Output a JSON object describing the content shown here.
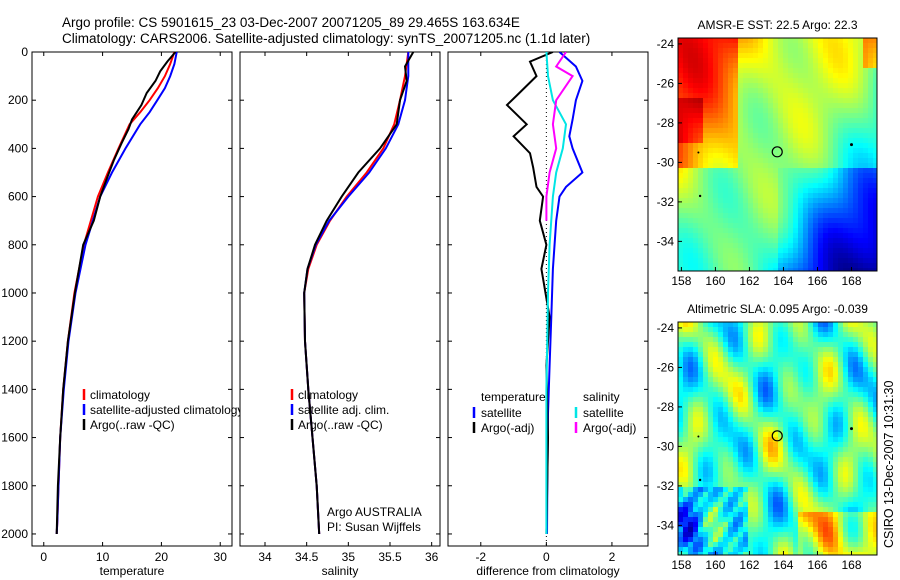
{
  "header": {
    "line1": "Argo profile: CS 5901615_23 03-Dec-2007 20071205_89 29.465S 163.634E",
    "line2": "Climatology: CARS2006. Satellite-adjusted climatology: synTS_20071205.nc (1.1d later)"
  },
  "side_label": "CSIRO 13-Dec-2007 10:31:30",
  "colors": {
    "climatology": "#ff0000",
    "satellite": "#0000ff",
    "argo": "#000000",
    "sat_diff_sal": "#00e5e5",
    "argo_diff_sal": "#ff00ff"
  },
  "chart_data": [
    {
      "type": "line",
      "id": "temperature",
      "xlabel": "temperature",
      "xlim": [
        -2,
        32
      ],
      "ylim": [
        2050,
        0
      ],
      "xticks": [
        0,
        10,
        20,
        30
      ],
      "yticks": [
        0,
        200,
        400,
        600,
        800,
        1000,
        1200,
        1400,
        1600,
        1800,
        2000
      ],
      "legend": [
        "climatology",
        "satellite-adjusted climatology",
        "Argo(..raw -QC)"
      ],
      "series": [
        {
          "name": "climatology",
          "color": "#ff0000",
          "x": [
            22.2,
            21.5,
            20.6,
            19.4,
            18.0,
            16.4,
            14.6,
            12.7,
            10.9,
            9.2,
            6.8,
            5.2,
            4.1,
            3.3,
            2.8,
            2.5,
            2.3,
            2.2
          ],
          "y": [
            0,
            50,
            100,
            150,
            200,
            250,
            300,
            400,
            500,
            600,
            800,
            1000,
            1200,
            1400,
            1600,
            1800,
            1950,
            2000
          ]
        },
        {
          "name": "satellite-adjusted climatology",
          "color": "#0000ff",
          "x": [
            22.6,
            22.2,
            21.5,
            20.6,
            19.3,
            18.0,
            16.4,
            13.9,
            11.6,
            9.6,
            7.1,
            5.4,
            4.2,
            3.4,
            2.8,
            2.5,
            2.3,
            2.2
          ],
          "y": [
            0,
            50,
            100,
            150,
            200,
            250,
            300,
            400,
            500,
            600,
            800,
            1000,
            1200,
            1400,
            1600,
            1800,
            1950,
            2000
          ]
        },
        {
          "name": "Argo(..raw -QC)",
          "color": "#000000",
          "x": [
            22.4,
            21.0,
            19.8,
            19.0,
            17.5,
            16.6,
            15.0,
            14.4,
            13.2,
            11.9,
            10.8,
            9.6,
            8.5,
            6.7,
            5.3,
            4.1,
            3.3,
            2.8,
            2.4,
            2.2
          ],
          "y": [
            0,
            40,
            80,
            120,
            170,
            220,
            280,
            320,
            380,
            450,
            520,
            600,
            700,
            800,
            1000,
            1200,
            1400,
            1600,
            1800,
            2000
          ]
        }
      ]
    },
    {
      "type": "line",
      "id": "salinity",
      "xlabel": "salinity",
      "xlim": [
        33.7,
        36.1
      ],
      "ylim": [
        2050,
        0
      ],
      "xticks": [
        34,
        34.5,
        35,
        35.5,
        36
      ],
      "yticks": [
        0,
        200,
        400,
        600,
        800,
        1000,
        1200,
        1400,
        1600,
        1800,
        2000
      ],
      "legend": [
        "climatology",
        "satellite adj. clim.",
        "Argo(..raw -QC)"
      ],
      "annotation": [
        "Argo AUSTRALIA",
        "PI: Susan Wijffels"
      ],
      "series": [
        {
          "name": "climatology",
          "color": "#ff0000",
          "x": [
            35.72,
            35.68,
            35.62,
            35.55,
            35.42,
            35.22,
            34.98,
            34.78,
            34.62,
            34.52,
            34.47,
            34.48,
            34.52,
            34.57,
            34.62,
            34.65
          ],
          "y": [
            0,
            100,
            200,
            300,
            400,
            500,
            600,
            700,
            800,
            900,
            1000,
            1200,
            1400,
            1600,
            1800,
            2000
          ]
        },
        {
          "name": "satellite adj. clim.",
          "color": "#0000ff",
          "x": [
            35.72,
            35.72,
            35.68,
            35.6,
            35.45,
            35.25,
            35.0,
            34.77,
            34.61,
            34.51,
            34.47,
            34.48,
            34.52,
            34.57,
            34.62,
            34.65
          ],
          "y": [
            0,
            100,
            200,
            300,
            400,
            500,
            600,
            700,
            800,
            900,
            1000,
            1200,
            1400,
            1600,
            1800,
            2000
          ]
        },
        {
          "name": "Argo(..raw -QC)",
          "color": "#000000",
          "x": [
            35.78,
            35.68,
            35.7,
            35.62,
            35.58,
            35.38,
            35.12,
            34.92,
            34.74,
            34.6,
            34.51,
            34.47,
            34.48,
            34.52,
            34.57,
            34.62,
            34.65
          ],
          "y": [
            0,
            60,
            120,
            200,
            300,
            400,
            500,
            600,
            700,
            800,
            900,
            1000,
            1200,
            1400,
            1600,
            1800,
            2000
          ]
        }
      ]
    },
    {
      "type": "line",
      "id": "difference",
      "xlabel": "difference from climatology",
      "xlim": [
        -3,
        3.1
      ],
      "ylim": [
        2050,
        0
      ],
      "xticks": [
        -2,
        0,
        2
      ],
      "yticks": [
        0,
        200,
        400,
        600,
        800,
        1000,
        1200,
        1400,
        1600,
        1800,
        2000
      ],
      "legend_left_title": "temperature",
      "legend_right_title": "salinity",
      "legend_left": [
        "satellite",
        "Argo(-adj)"
      ],
      "legend_right": [
        "satellite",
        "Argo(-adj)"
      ],
      "series": [
        {
          "name": "temperature satellite",
          "color": "#0000ff",
          "x": [
            0.4,
            0.9,
            1.1,
            0.9,
            0.8,
            0.7,
            0.8,
            1.1,
            0.6,
            0.4,
            0.3,
            0.2,
            0.15,
            0.1,
            0.05,
            0.03,
            0.02
          ],
          "y": [
            0,
            60,
            120,
            200,
            280,
            350,
            400,
            500,
            560,
            600,
            700,
            900,
            1100,
            1300,
            1500,
            1800,
            2000
          ]
        },
        {
          "name": "temperature Argo(-adj)",
          "color": "#000000",
          "x": [
            0.2,
            -0.5,
            -0.3,
            -0.9,
            -1.2,
            -0.6,
            -1.0,
            -0.5,
            -0.4,
            -0.3,
            -0.1,
            -0.2,
            0.0,
            -0.15,
            0.1,
            0.0,
            0.05,
            0.0
          ],
          "y": [
            0,
            40,
            100,
            180,
            220,
            300,
            350,
            420,
            480,
            560,
            600,
            700,
            800,
            900,
            1100,
            1300,
            1600,
            2000
          ]
        },
        {
          "name": "salinity satellite",
          "color": "#00e5e5",
          "x": [
            0.0,
            0.05,
            0.2,
            0.6,
            0.5,
            0.3,
            0.2,
            0.1,
            0.05,
            0.0,
            0.0
          ],
          "y": [
            0,
            100,
            200,
            300,
            400,
            500,
            600,
            800,
            1000,
            1400,
            2000
          ]
        },
        {
          "name": "salinity Argo(-adj)",
          "color": "#ff00ff",
          "x": [
            0.6,
            0.3,
            0.8,
            0.3,
            0.2,
            0.3,
            0.1,
            0.0,
            0.0
          ],
          "y": [
            0,
            60,
            100,
            200,
            300,
            400,
            500,
            600,
            700
          ]
        }
      ]
    },
    {
      "type": "heatmap",
      "id": "sst_map",
      "title": "AMSR-E SST: 22.5 Argo: 22.3",
      "xlim": [
        157.8,
        169.5
      ],
      "ylim": [
        -35.5,
        -23.7
      ],
      "xticks": [
        158,
        160,
        162,
        164,
        166,
        168
      ],
      "yticks": [
        -24,
        -26,
        -28,
        -30,
        -32,
        -34
      ],
      "float_position": {
        "lon": 163.634,
        "lat": -29.465
      }
    },
    {
      "type": "heatmap",
      "id": "sla_map",
      "title": "Altimetric SLA: 0.095 Argo: -0.039",
      "xlim": [
        157.8,
        169.5
      ],
      "ylim": [
        -35.5,
        -23.7
      ],
      "xticks": [
        158,
        160,
        162,
        164,
        166,
        168
      ],
      "yticks": [
        -24,
        -26,
        -28,
        -30,
        -32,
        -34
      ],
      "float_position": {
        "lon": 163.634,
        "lat": -29.465
      }
    }
  ]
}
